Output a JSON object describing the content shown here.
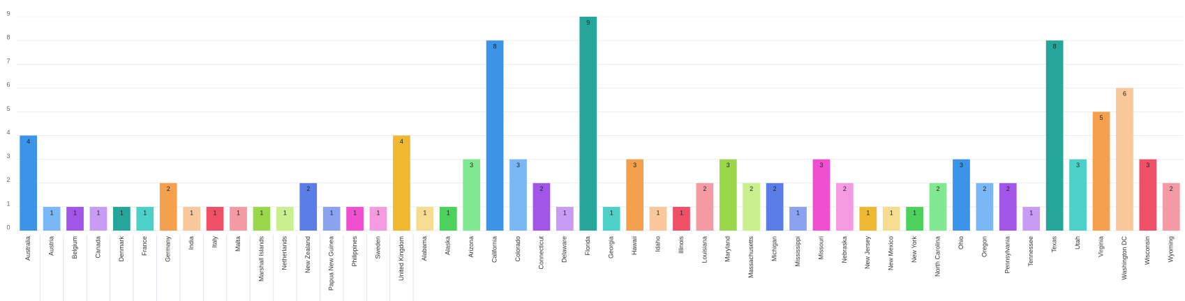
{
  "chart_data": {
    "type": "bar",
    "categories": [
      "Australia",
      "Austria",
      "Belgium",
      "Canada",
      "Denmark",
      "France",
      "Germany",
      "India",
      "Italy",
      "Malta",
      "Marshall Islands",
      "Netherlands",
      "New Zealand",
      "Papua New Guinea",
      "Philippines",
      "Sweden",
      "United Kingdom",
      "Alabama",
      "Alaska",
      "Arizona",
      "California",
      "Colorado",
      "Connecticut",
      "Delaware",
      "Florida",
      "Georgia",
      "Hawaii",
      "Idaho",
      "Illinois",
      "Louisiana",
      "Maryland",
      "Massachusetts",
      "Michigan",
      "Mississippi",
      "Missouri",
      "Nebraska",
      "New Jersey",
      "New Mexico",
      "New York",
      "North Carolina",
      "Ohio",
      "Oregon",
      "Pennsylvania",
      "Tennessee",
      "Texas",
      "Utah",
      "Virginia",
      "Washington DC",
      "Wisconsin",
      "Wyoming"
    ],
    "values": [
      4,
      1,
      1,
      1,
      1,
      1,
      2,
      1,
      1,
      1,
      1,
      1,
      2,
      1,
      1,
      1,
      4,
      1,
      1,
      3,
      8,
      3,
      2,
      1,
      9,
      1,
      3,
      1,
      1,
      2,
      3,
      2,
      2,
      1,
      3,
      2,
      1,
      1,
      1,
      2,
      3,
      2,
      2,
      1,
      8,
      3,
      5,
      6,
      3,
      2
    ],
    "colors": [
      "#3b94e8",
      "#7ab8f5",
      "#a256e8",
      "#c89cf5",
      "#26a69a",
      "#4dd0c8",
      "#f5a04f",
      "#f8c89a",
      "#ef5068",
      "#f49aa4",
      "#99d84a",
      "#c8f08f",
      "#5a7de8",
      "#8ba2f0",
      "#f050d0",
      "#f49ae0",
      "#eeb930",
      "#f5dc90",
      "#4cd15c",
      "#80e890"
    ],
    "ylim": [
      0,
      9
    ],
    "yticks": [
      0,
      1,
      2,
      3,
      4,
      5,
      6,
      7,
      8,
      9
    ],
    "grid": true,
    "data_labels": true
  }
}
